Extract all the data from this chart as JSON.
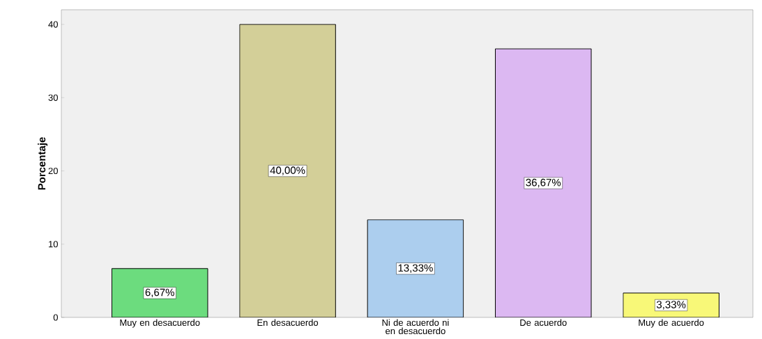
{
  "chart_data": {
    "type": "bar",
    "ylabel": "Porcentaje",
    "categories": [
      "Muy en desacuerdo",
      "En desacuerdo",
      "Ni de acuerdo ni en desacuerdo",
      "De acuerdo",
      "Muy de acuerdo"
    ],
    "values": [
      6.67,
      40.0,
      13.33,
      36.67,
      3.33
    ],
    "colors": [
      "#6cdc7e",
      "#d3cf98",
      "#acceee",
      "#dcb8f2",
      "#f8f878"
    ],
    "value_labels": [
      "6,67%",
      "40,00%",
      "13,33%",
      "36,67%",
      "3,33%"
    ],
    "ylim": [
      0,
      42
    ],
    "yticks": [
      0,
      10,
      20,
      30,
      40
    ],
    "grid": false
  }
}
